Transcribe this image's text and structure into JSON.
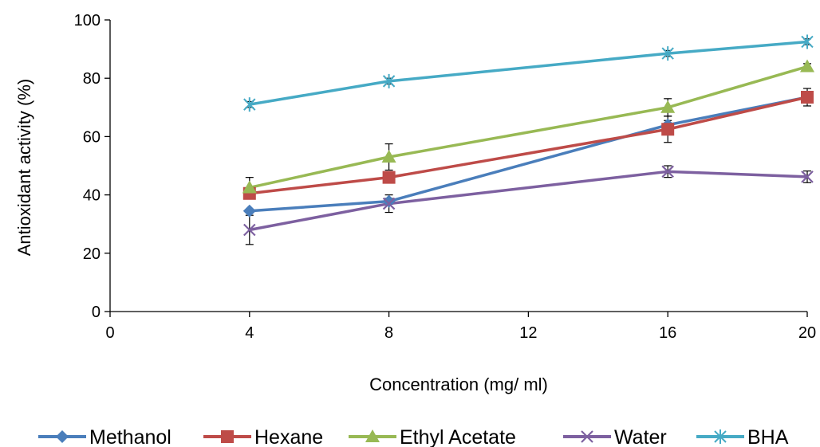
{
  "chart_data": {
    "type": "line",
    "title": "",
    "xlabel": "Concentration (mg/ ml)",
    "ylabel": "Antioxidant activity (%)",
    "xlim": [
      0,
      20
    ],
    "ylim": [
      0,
      100
    ],
    "xticks": [
      "0",
      "4",
      "8",
      "12",
      "16",
      "20"
    ],
    "yticks": [
      "0",
      "20",
      "40",
      "60",
      "80",
      "100"
    ],
    "grid": false,
    "legend_position": "bottom",
    "x": [
      4,
      8,
      16,
      20
    ],
    "series": [
      {
        "name": "Methanol",
        "color": "#4a7ebb",
        "marker": "diamond",
        "values": [
          34.5,
          37.8,
          64.0,
          73.5
        ],
        "errors": [
          0,
          1.0,
          1.5,
          1.5
        ]
      },
      {
        "name": "Hexane",
        "color": "#be4b48",
        "marker": "square",
        "values": [
          40.5,
          46.0,
          62.5,
          73.5
        ],
        "errors": [
          1.5,
          1.5,
          4.5,
          3.0
        ]
      },
      {
        "name": "Ethyl Acetate",
        "color": "#98b954",
        "marker": "triangle",
        "values": [
          42.5,
          53.0,
          70.0,
          84.0
        ],
        "errors": [
          3.5,
          4.5,
          3.0,
          1.0
        ]
      },
      {
        "name": "Water",
        "color": "#7d60a0",
        "marker": "x",
        "values": [
          28.0,
          37.0,
          48.0,
          46.2
        ],
        "errors": [
          5.0,
          3.0,
          2.0,
          2.0
        ]
      },
      {
        "name": "BHA",
        "color": "#46aac5",
        "marker": "star",
        "values": [
          71.0,
          79.0,
          88.5,
          92.5
        ],
        "errors": [
          1.0,
          1.0,
          1.0,
          1.0
        ]
      }
    ]
  }
}
